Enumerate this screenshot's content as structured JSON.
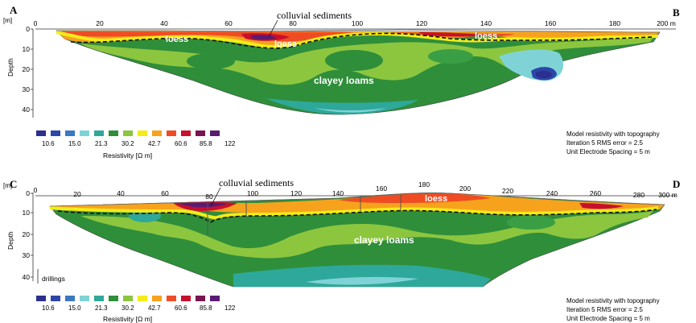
{
  "profile_ab": {
    "start_letter": "A",
    "end_letter": "B",
    "depth_unit": "[m]",
    "depth_axis_label": "Depth",
    "depth_ticks": [
      "0",
      "10",
      "20",
      "30",
      "40"
    ],
    "distance_ticks": [
      "0",
      "20",
      "40",
      "60",
      "80",
      "100",
      "120",
      "140",
      "160",
      "180",
      "200 m"
    ],
    "labels": {
      "colluvial": "colluvial sediments",
      "loess_1": "loess",
      "loess_2": "loess",
      "loess_3": "loess",
      "clayey": "clayey loams"
    },
    "legend_values": [
      "10.6",
      "15.0",
      "21.3",
      "30.2",
      "42.7",
      "60.6",
      "85.8",
      "122"
    ],
    "legend_title": "Resistivity [Ω m]",
    "info_lines": [
      "Model resistivity with topography",
      "Iteration 5 RMS error = 2.5",
      "Unit Electrode Spacing = 5 m"
    ]
  },
  "profile_cd": {
    "start_letter": "C",
    "end_letter": "D",
    "depth_unit": "[m]",
    "depth_axis_label": "Depth",
    "depth_ticks": [
      "0",
      "10",
      "20",
      "30",
      "40"
    ],
    "distance_ticks": [
      "0",
      "20",
      "40",
      "60",
      "80",
      "100",
      "120",
      "140",
      "160",
      "180",
      "200",
      "220",
      "240",
      "260",
      "280",
      "300 m"
    ],
    "labels": {
      "colluvial": "colluvial sediments",
      "loess": "loess",
      "clayey": "clayey loams"
    },
    "drillings_label": "drillings",
    "legend_values": [
      "10.6",
      "15.0",
      "21.3",
      "30.2",
      "42.7",
      "60.6",
      "85.8",
      "122"
    ],
    "legend_title": "Resistivity [Ω m]",
    "info_lines": [
      "Model resistivity with topography",
      "Iteration 5 RMS error = 2.5",
      "Unit Electrode Spacing = 5 m"
    ]
  },
  "legend_colors": [
    "#2b2f8f",
    "#2c46a8",
    "#3a78c4",
    "#7fd3d6",
    "#2ea89a",
    "#2f8e3a",
    "#8cc63f",
    "#f3ec19",
    "#f7a21c",
    "#ef4c24",
    "#c8102e",
    "#7a1450",
    "#5b1a72"
  ],
  "colors": {
    "dark_green": "#2f8e3a",
    "mid_green": "#3a9f44",
    "light_green": "#8cc63f",
    "teal": "#2ea89a",
    "cyan": "#7fd3d6",
    "yellow": "#f3ec19",
    "orange": "#f7a21c",
    "red": "#ef4c24",
    "crimson": "#c8102e",
    "purple": "#5b1a72",
    "navy": "#2b2f8f"
  }
}
